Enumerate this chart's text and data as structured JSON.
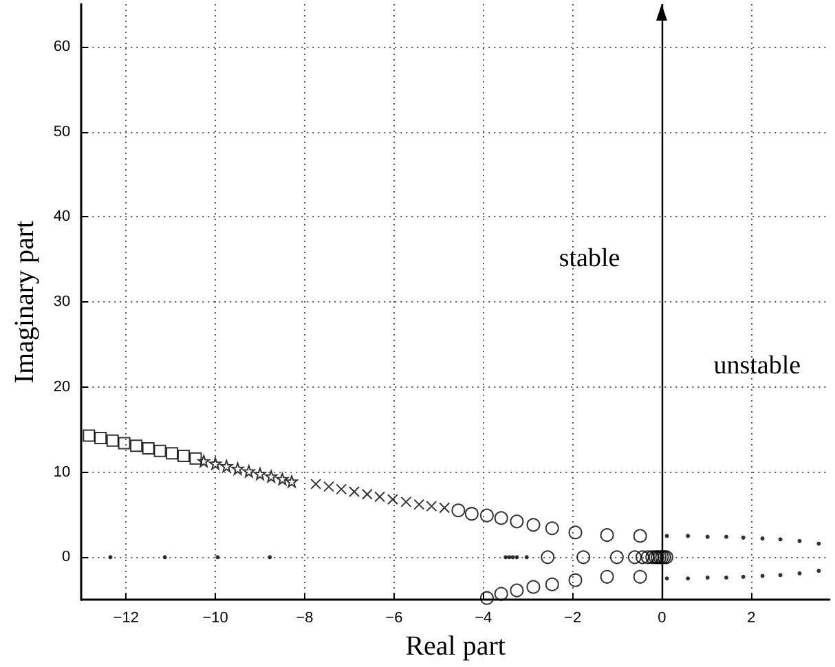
{
  "chart_data": {
    "type": "scatter",
    "xlabel": "Real part",
    "ylabel": "Imaginary part",
    "xlim": [
      -13,
      3.75
    ],
    "ylim": [
      -5,
      65
    ],
    "xticks": [
      -12,
      -10,
      -8,
      -6,
      -4,
      -2,
      0,
      2
    ],
    "yticks": [
      0,
      10,
      20,
      30,
      40,
      50,
      60
    ],
    "grid": true,
    "series": [
      {
        "color": "#000000",
        "marker": "square",
        "x": [
          -12.83,
          -12.57,
          -12.3,
          -12.04,
          -11.77,
          -11.5,
          -11.24,
          -10.97,
          -10.71,
          -10.44
        ],
        "values": [
          14.3,
          14.0,
          13.7,
          13.4,
          13.1,
          12.8,
          12.5,
          12.2,
          11.9,
          11.6
        ]
      },
      {
        "color": "#000000",
        "marker": "star",
        "x": [
          -10.26,
          -10.0,
          -9.75,
          -9.5,
          -9.25,
          -9.0,
          -8.75,
          -8.5,
          -8.29
        ],
        "values": [
          11.3,
          11.0,
          10.7,
          10.4,
          10.1,
          9.8,
          9.5,
          9.2,
          8.9
        ]
      },
      {
        "color": "#000000",
        "marker": "cross",
        "x": [
          -7.75,
          -7.46,
          -7.18,
          -6.89,
          -6.6,
          -6.32,
          -6.03,
          -5.73,
          -5.44,
          -5.16,
          -4.87
        ],
        "values": [
          8.6,
          8.3,
          8.0,
          7.7,
          7.4,
          7.1,
          6.8,
          6.5,
          6.2,
          6.0,
          5.8
        ]
      },
      {
        "color": "#000000",
        "marker": "circle",
        "x": [
          -4.56,
          -4.26,
          -3.92,
          -3.6,
          -3.25,
          -2.88,
          -2.46,
          -1.94,
          -1.23,
          -0.49,
          -3.92,
          -3.6,
          -3.25,
          -2.88,
          -2.46,
          -1.94,
          -1.23,
          -0.49,
          -2.56,
          -1.76,
          -1.01,
          -0.61,
          -0.44,
          -0.32,
          -0.22,
          -0.15,
          -0.1,
          -0.05,
          0,
          0.05,
          0.1
        ],
        "values": [
          5.5,
          5.1,
          4.9,
          4.6,
          4.2,
          3.8,
          3.4,
          2.9,
          2.6,
          2.5,
          -4.8,
          -4.3,
          -3.9,
          -3.5,
          -3.2,
          -2.7,
          -2.3,
          -2.3,
          0,
          0,
          0,
          0,
          0,
          0,
          0,
          0,
          0,
          0,
          0,
          0,
          0
        ]
      },
      {
        "color": "#000000",
        "marker": "point",
        "x": [
          -12.35,
          -11.13,
          -9.95,
          -8.78,
          -3.5,
          -3.42,
          -3.34,
          -3.25,
          -3.03,
          0.11,
          0.58,
          1.02,
          1.44,
          1.82,
          2.25,
          2.65,
          3.08,
          3.51,
          0.11,
          0.58,
          1.02,
          1.44,
          1.82,
          2.25,
          2.65,
          3.08,
          3.51
        ],
        "values": [
          0,
          0,
          0,
          0,
          0,
          0,
          0,
          0,
          0,
          2.5,
          2.5,
          2.4,
          2.4,
          2.3,
          2.2,
          2.1,
          1.9,
          1.6,
          -2.5,
          -2.5,
          -2.4,
          -2.4,
          -2.3,
          -2.2,
          -2.1,
          -1.9,
          -1.6
        ]
      }
    ],
    "ref_lines": [
      {
        "axis": "x",
        "value": 0,
        "color": "#000000",
        "line_style": "solid"
      }
    ],
    "annotations": [
      "stable",
      "unstable"
    ]
  }
}
